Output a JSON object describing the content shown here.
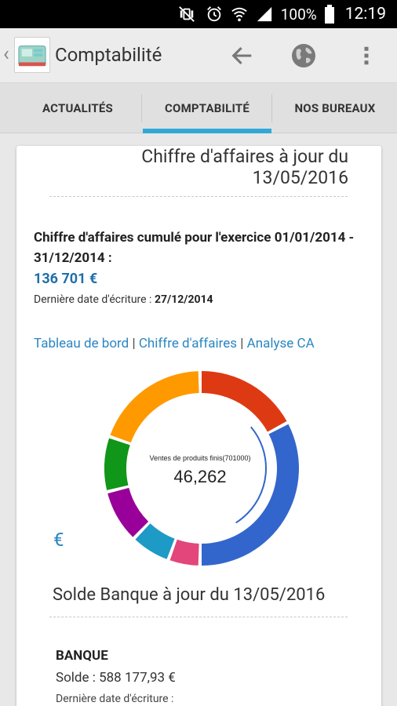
{
  "status_bar": {
    "battery": "100%",
    "time": "12:19"
  },
  "app_bar": {
    "title": "Comptabilité"
  },
  "tabs": [
    {
      "label": "ACTUALITÉS"
    },
    {
      "label": "COMPTABILITÉ",
      "active": true
    },
    {
      "label": "NOS BUREAUX"
    }
  ],
  "revenue": {
    "title": "Chiffre d'affaires à jour du 13/05/2016",
    "cumulative_label": "Chiffre d'affaires cumulé pour l'exercice 01/01/2014 - 31/12/2014 :",
    "amount": "136 701 €",
    "last_entry_label": "Dernière date d'écriture : ",
    "last_entry_date": "27/12/2014",
    "links": [
      "Tableau de bord",
      "Chiffre d'affaires",
      "Analyse CA"
    ],
    "separator": "|"
  },
  "donut": {
    "center_label": "Ventes de produits finis(701000)",
    "center_value": "46,262",
    "currency": "€",
    "colors": [
      "#dd3a14",
      "#3366cc",
      "#e3467a",
      "#1d9ac6",
      "#990099",
      "#109618",
      "#ff9900"
    ]
  },
  "bank": {
    "title": "Solde Banque à jour du 13/05/2016",
    "name": "BANQUE",
    "balance": "Solde : 588 177,93 €",
    "last_entry": "Dernière date d'écriture :"
  }
}
